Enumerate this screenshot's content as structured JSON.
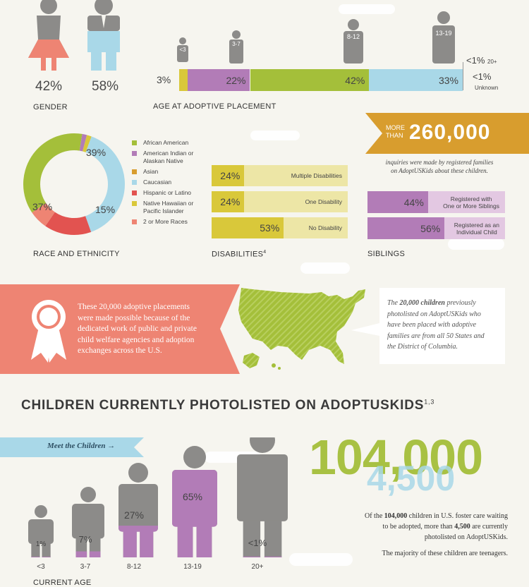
{
  "colors": {
    "coral": "#ee8473",
    "lightblue": "#a9d8e8",
    "purple": "#b27cb7",
    "green": "#a4bf3a",
    "yellow": "#d9c83a",
    "gray": "#8c8b89",
    "orange": "#d89d2e",
    "red": "#e25350"
  },
  "gender": {
    "female_pct": "42%",
    "male_pct": "58%",
    "caption": "GENDER"
  },
  "age_placement": {
    "caption": "AGE AT ADOPTIVE PLACEMENT",
    "icons": [
      {
        "label": "<3"
      },
      {
        "label": "3-7"
      },
      {
        "label": "8-12"
      },
      {
        "label": "13-19"
      }
    ],
    "segments": [
      {
        "label": "3%",
        "value": 3,
        "color": "#d9c83a"
      },
      {
        "label": "22%",
        "value": 22,
        "color": "#b27cb7"
      },
      {
        "label": "42%",
        "value": 42,
        "color": "#a4bf3a"
      },
      {
        "label": "33%",
        "value": 33,
        "color": "#a9d8e8"
      }
    ],
    "note_20plus_value": "<1%",
    "note_20plus_label": "20+",
    "note_unknown_value": "<1%",
    "note_unknown_label": "Unknown"
  },
  "race": {
    "caption": "RACE AND ETHNICITY",
    "labels": {
      "caucasian": "39%",
      "african_american": "37%",
      "hispanic": "15%"
    },
    "slices": [
      {
        "name": "Caucasian",
        "value": 39,
        "color": "#a9d8e8"
      },
      {
        "name": "Hispanic or Latino",
        "value": 15,
        "color": "#e25350"
      },
      {
        "name": "2 or More Races",
        "value": 6,
        "color": "#ee8473"
      },
      {
        "name": "African American",
        "value": 37,
        "color": "#a4bf3a"
      },
      {
        "name": "American Indian or Alaskan Native",
        "value": 1.5,
        "color": "#b27cb7"
      },
      {
        "name": "Native Hawaiian or Pacific Islander",
        "value": 1.5,
        "color": "#d9c83a"
      }
    ],
    "legend": [
      {
        "lines": [
          "African American"
        ],
        "color": "#a4bf3a"
      },
      {
        "lines": [
          "American Indian or",
          "Alaskan Native"
        ],
        "color": "#b27cb7"
      },
      {
        "lines": [
          "Asian"
        ],
        "color": "#d89d2e"
      },
      {
        "lines": [
          "Caucasian"
        ],
        "color": "#a9d8e8"
      },
      {
        "lines": [
          "Hispanic or Latino"
        ],
        "color": "#e25350"
      },
      {
        "lines": [
          "Native Hawaiian or",
          "Pacific Islander"
        ],
        "color": "#d9c83a"
      },
      {
        "lines": [
          "2 or More Races"
        ],
        "color": "#ee8473"
      }
    ]
  },
  "disabilities": {
    "caption": "DISABILITIES",
    "footnote": "4",
    "rows": [
      {
        "pct": "24%",
        "value": 24,
        "label": "Multiple Disabilities"
      },
      {
        "pct": "24%",
        "value": 24,
        "label": "One Disability"
      },
      {
        "pct": "53%",
        "value": 53,
        "label": "No Disability"
      }
    ]
  },
  "inquiries": {
    "more": "MORE",
    "than": "THAN",
    "number": "260,000",
    "text_line1": "inquiries were made by registered families",
    "text_line2": "on AdoptUSKids about these children."
  },
  "siblings": {
    "caption": "SIBLINGS",
    "rows": [
      {
        "pct": "44%",
        "value": 44,
        "label_line1": "Registered with",
        "label_line2": "One or More Siblings"
      },
      {
        "pct": "56%",
        "value": 56,
        "label_line1": "Registered as an",
        "label_line2": "Individual Child"
      }
    ]
  },
  "placements_banner": {
    "line1": "These 20,000 adoptive placements",
    "line2": "were made possible because of the",
    "line3": "dedicated work of public and private",
    "line4": "child welfare agencies and adoption",
    "line5": "exchanges across the U.S."
  },
  "map_callout": {
    "line1a": "The ",
    "line1b": "20,000 children",
    "line1c": " previously",
    "line2": "photolisted on AdoptUSKids who",
    "line3": "have been placed with adoptive",
    "line4": "families are from all 50 States and",
    "line5": "the District of Columbia."
  },
  "section2": {
    "heading": "CHILDREN CURRENTLY PHOTOLISTED ON ADOPTUSKIDS",
    "footnote": "1,3"
  },
  "meet": {
    "label": "Meet the Children",
    "arrow": "→"
  },
  "current_age": {
    "caption": "CURRENT AGE",
    "figures": [
      {
        "age": "<3",
        "pct": "1%",
        "fill": 0.01
      },
      {
        "age": "3-7",
        "pct": "7%",
        "fill": 0.07
      },
      {
        "age": "8-12",
        "pct": "27%",
        "fill": 0.27
      },
      {
        "age": "13-19",
        "pct": "65%",
        "fill": 0.65
      },
      {
        "age": "20+",
        "pct": "<1%",
        "fill": 0.005
      }
    ]
  },
  "big_numbers": {
    "n1": "104,000",
    "n2": "4,500"
  },
  "summary": {
    "a": "Of the ",
    "b": "104,000",
    "c": " children in U.S. foster care waiting",
    "d": "to be adopted, more than ",
    "e": "4,500",
    "f": " are currently",
    "g": "photolisted on AdoptUSKids.",
    "h": "The majority of these children are teenagers."
  }
}
